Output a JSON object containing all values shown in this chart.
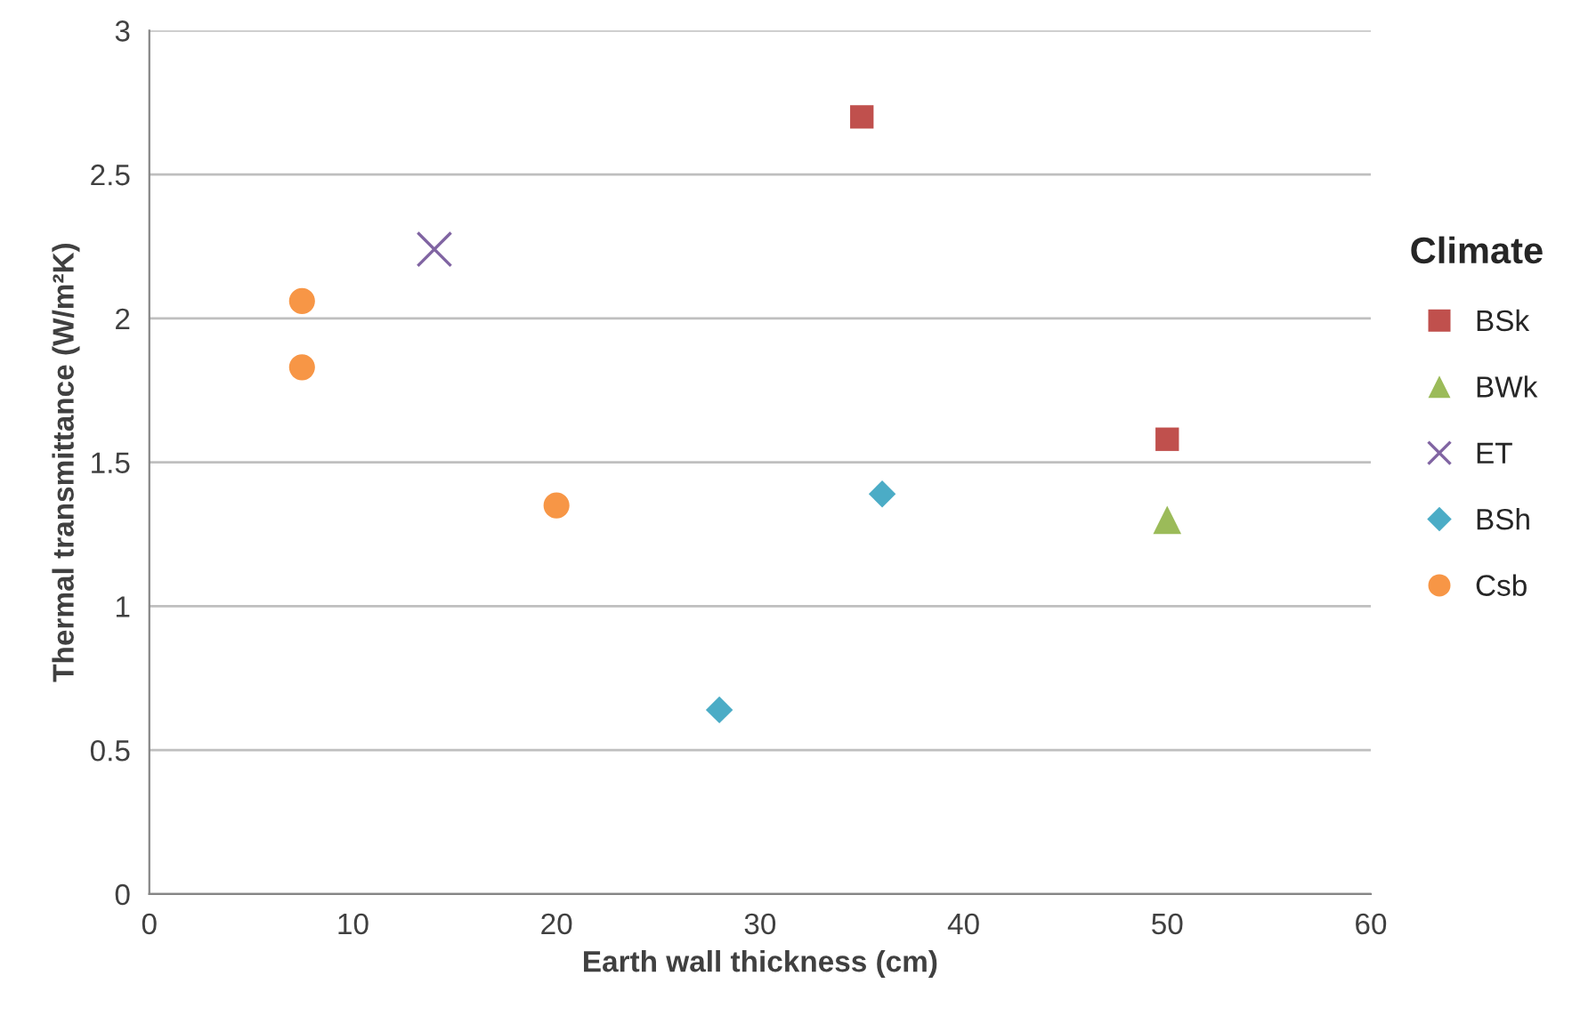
{
  "chart_data": {
    "type": "scatter",
    "xlabel": "Earth wall thickness (cm)",
    "ylabel": "Thermal transmittance (W/m²K)",
    "legend_title": "Climate",
    "legend": "right",
    "grid": "y",
    "xlim": [
      0,
      60
    ],
    "xticks": [
      0,
      10,
      20,
      30,
      40,
      50,
      60
    ],
    "ylim": [
      0,
      3
    ],
    "yticks": [
      0,
      0.5,
      1,
      1.5,
      2,
      2.5,
      3
    ],
    "series": [
      {
        "name": "BSk",
        "color": "#c0504d",
        "marker": "square",
        "x": [
          35,
          50
        ],
        "values": [
          2.7,
          1.58
        ]
      },
      {
        "name": "BWk",
        "color": "#9bbb59",
        "marker": "triangle",
        "x": [
          50
        ],
        "values": [
          1.3
        ]
      },
      {
        "name": "ET",
        "color": "#8064a2",
        "marker": "cross",
        "x": [
          14
        ],
        "values": [
          2.24
        ]
      },
      {
        "name": "BSh",
        "color": "#4bacc6",
        "marker": "diamond",
        "x": [
          28,
          36
        ],
        "values": [
          0.64,
          1.39
        ]
      },
      {
        "name": "Csb",
        "color": "#f79646",
        "marker": "circle",
        "x": [
          7.5,
          7.5,
          20
        ],
        "values": [
          2.06,
          1.83,
          1.35
        ]
      }
    ]
  }
}
